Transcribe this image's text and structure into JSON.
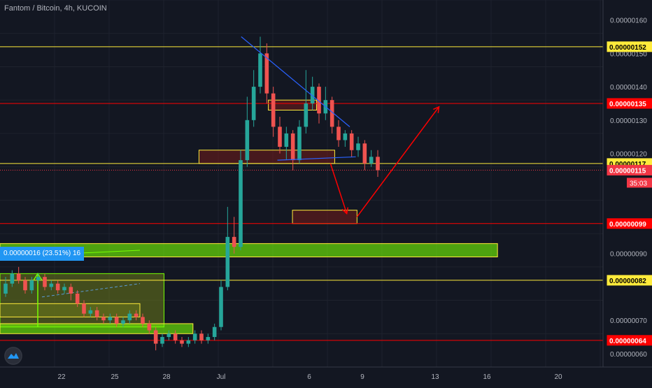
{
  "header": {
    "title": "Fantom / Bitcoin, 4h, KUCOIN"
  },
  "measure_label": "0.00000016 (23.51%) 16",
  "timer": "35:03",
  "colors": {
    "background": "#131722",
    "grid": "#1e222d",
    "up": "#26a69a",
    "down": "#ef5350",
    "yellow": "#ffeb3b",
    "red": "#ff0000",
    "green": "#76ff03",
    "blue": "#2962ff",
    "tick": "#b2b5be",
    "current": "#f23645"
  },
  "chart_data": {
    "type": "candlestick",
    "title": "Fantom / Bitcoin, 4h, KUCOIN",
    "ylim": [
      5.6e-07,
      1.66e-06
    ],
    "y_ticks": [
      "0.00000060",
      "0.00000070",
      "0.00000090",
      "0.00000120",
      "0.00000130",
      "0.00000140",
      "0.00000150",
      "0.00000160"
    ],
    "x_ticks": [
      "22",
      "25",
      "28",
      "Jul",
      "6",
      "9",
      "13",
      "16",
      "20"
    ],
    "price_labels": [
      {
        "text": "0.00000152",
        "value": 1.52e-06,
        "style": "yellow"
      },
      {
        "text": "0.00000135",
        "value": 1.35e-06,
        "style": "red"
      },
      {
        "text": "0.00000117",
        "value": 1.17e-06,
        "style": "yellow"
      },
      {
        "text": "0.00000115",
        "value": 1.15e-06,
        "style": "current"
      },
      {
        "text": "0.00000099",
        "value": 9.9e-07,
        "style": "red"
      },
      {
        "text": "0.00000082",
        "value": 8.2e-07,
        "style": "yellow"
      },
      {
        "text": "0.00000064",
        "value": 6.4e-07,
        "style": "red"
      }
    ],
    "horizontal_lines": [
      {
        "value": 1.52e-06,
        "color": "yellow"
      },
      {
        "value": 1.35e-06,
        "color": "red"
      },
      {
        "value": 1.17e-06,
        "color": "yellow"
      },
      {
        "value": 9.9e-07,
        "color": "red"
      },
      {
        "value": 8.2e-07,
        "color": "yellow"
      },
      {
        "value": 6.4e-07,
        "color": "red"
      }
    ],
    "candles": [
      [
        7.8e-07,
        8.1e-07,
        8.3e-07,
        7.7e-07
      ],
      [
        8.1e-07,
        8.4e-07,
        8.5e-07,
        8e-07
      ],
      [
        8.4e-07,
        8.2e-07,
        8.6e-07,
        8.1e-07
      ],
      [
        8.2e-07,
        7.9e-07,
        8.3e-07,
        7.8e-07
      ],
      [
        7.9e-07,
        8.2e-07,
        8.3e-07,
        7.8e-07
      ],
      [
        8.2e-07,
        8.3e-07,
        8.4e-07,
        8.1e-07
      ],
      [
        8.3e-07,
        8e-07,
        8.4e-07,
        7.9e-07
      ],
      [
        8e-07,
        8.1e-07,
        8.2e-07,
        7.9e-07
      ],
      [
        8.1e-07,
        7.9e-07,
        8.2e-07,
        7.8e-07
      ],
      [
        7.9e-07,
        8e-07,
        8.1e-07,
        7.8e-07
      ],
      [
        8e-07,
        7.8e-07,
        8.1e-07,
        7.6e-07
      ],
      [
        7.8e-07,
        7.5e-07,
        7.9e-07,
        7.4e-07
      ],
      [
        7.5e-07,
        7.2e-07,
        7.6e-07,
        7.1e-07
      ],
      [
        7.2e-07,
        7.3e-07,
        7.4e-07,
        7.1e-07
      ],
      [
        7.3e-07,
        7.1e-07,
        7.4e-07,
        7e-07
      ],
      [
        7.1e-07,
        7e-07,
        7.2e-07,
        6.9e-07
      ],
      [
        7e-07,
        7.1e-07,
        7.2e-07,
        6.9e-07
      ],
      [
        7.1e-07,
        6.9e-07,
        7.2e-07,
        6.8e-07
      ],
      [
        6.9e-07,
        7e-07,
        7.1e-07,
        6.8e-07
      ],
      [
        7e-07,
        7.2e-07,
        7.3e-07,
        6.9e-07
      ],
      [
        7.2e-07,
        7.1e-07,
        7.3e-07,
        7e-07
      ],
      [
        7.1e-07,
        6.9e-07,
        7.2e-07,
        6.8e-07
      ],
      [
        6.9e-07,
        6.7e-07,
        7e-07,
        6.6e-07
      ],
      [
        6.7e-07,
        6.3e-07,
        6.8e-07,
        6.1e-07
      ],
      [
        6.3e-07,
        6.5e-07,
        6.6e-07,
        6.2e-07
      ],
      [
        6.5e-07,
        6.6e-07,
        6.7e-07,
        6.4e-07
      ],
      [
        6.6e-07,
        6.4e-07,
        6.7e-07,
        6.3e-07
      ],
      [
        6.4e-07,
        6.3e-07,
        6.5e-07,
        6.2e-07
      ],
      [
        6.3e-07,
        6.4e-07,
        6.5e-07,
        6.2e-07
      ],
      [
        6.4e-07,
        6.6e-07,
        6.7e-07,
        6.3e-07
      ],
      [
        6.6e-07,
        6.4e-07,
        6.7e-07,
        6.3e-07
      ],
      [
        6.4e-07,
        6.5e-07,
        6.6e-07,
        6.3e-07
      ],
      [
        6.5e-07,
        6.8e-07,
        6.9e-07,
        6.4e-07
      ],
      [
        6.8e-07,
        8e-07,
        8.2e-07,
        6.7e-07
      ],
      [
        8e-07,
        9.5e-07,
        1.04e-06,
        7.9e-07
      ],
      [
        9.5e-07,
        9.2e-07,
        1.01e-06,
        9e-07
      ],
      [
        9.2e-07,
        1.18e-06,
        1.21e-06,
        9.1e-07
      ],
      [
        1.18e-06,
        1.3e-06,
        1.37e-06,
        1.16e-06
      ],
      [
        1.3e-06,
        1.4e-06,
        1.45e-06,
        1.28e-06
      ],
      [
        1.4e-06,
        1.5e-06,
        1.55e-06,
        1.38e-06
      ],
      [
        1.5e-06,
        1.38e-06,
        1.53e-06,
        1.35e-06
      ],
      [
        1.38e-06,
        1.28e-06,
        1.4e-06,
        1.25e-06
      ],
      [
        1.28e-06,
        1.22e-06,
        1.31e-06,
        1.2e-06
      ],
      [
        1.22e-06,
        1.26e-06,
        1.28e-06,
        1.18e-06
      ],
      [
        1.26e-06,
        1.18e-06,
        1.27e-06,
        1.15e-06
      ],
      [
        1.18e-06,
        1.28e-06,
        1.3e-06,
        1.17e-06
      ],
      [
        1.28e-06,
        1.35e-06,
        1.45e-06,
        1.26e-06
      ],
      [
        1.35e-06,
        1.4e-06,
        1.43e-06,
        1.33e-06
      ],
      [
        1.4e-06,
        1.32e-06,
        1.41e-06,
        1.29e-06
      ],
      [
        1.32e-06,
        1.36e-06,
        1.4e-06,
        1.3e-06
      ],
      [
        1.36e-06,
        1.28e-06,
        1.37e-06,
        1.26e-06
      ],
      [
        1.28e-06,
        1.24e-06,
        1.3e-06,
        1.22e-06
      ],
      [
        1.24e-06,
        1.26e-06,
        1.27e-06,
        1.22e-06
      ],
      [
        1.26e-06,
        1.21e-06,
        1.27e-06,
        1.19e-06
      ],
      [
        1.21e-06,
        1.23e-06,
        1.25e-06,
        1.19e-06
      ],
      [
        1.23e-06,
        1.17e-06,
        1.24e-06,
        1.15e-06
      ],
      [
        1.17e-06,
        1.19e-06,
        1.21e-06,
        1.16e-06
      ],
      [
        1.19e-06,
        1.15e-06,
        1.21e-06,
        1.13e-06
      ]
    ],
    "zones": [
      {
        "x1": 0.33,
        "x2": 0.555,
        "y1": 1.21e-06,
        "y2": 1.17e-06,
        "fill": "darkred",
        "stroke": "yellow"
      },
      {
        "x1": 0.445,
        "x2": 0.525,
        "y1": 1.36e-06,
        "y2": 1.33e-06,
        "fill": "darkred",
        "stroke": "yellow"
      },
      {
        "x1": 0.485,
        "x2": 0.592,
        "y1": 1.03e-06,
        "y2": 9.9e-07,
        "fill": "darkred",
        "stroke": "yellow"
      },
      {
        "x1": 0.0,
        "x2": 0.825,
        "y1": 9.3e-07,
        "y2": 8.9e-07,
        "fill": "green",
        "stroke": "yellow"
      },
      {
        "x1": 0.0,
        "x2": 0.272,
        "y1": 8.4e-07,
        "y2": 6.8e-07,
        "fill": "olive",
        "stroke": "green"
      },
      {
        "x1": 0.0,
        "x2": 0.232,
        "y1": 7.5e-07,
        "y2": 7.1e-07,
        "fill": "olive",
        "stroke": "yellow"
      },
      {
        "x1": 0.0,
        "x2": 0.32,
        "y1": 6.9e-07,
        "y2": 6.6e-07,
        "fill": "green",
        "stroke": "yellow"
      }
    ],
    "trendlines": [
      {
        "x1": 0.4,
        "y1": 1.55e-06,
        "x2": 0.58,
        "y2": 1.28e-06,
        "color": "blue"
      },
      {
        "x1": 0.46,
        "y1": 1.18e-06,
        "x2": 0.59,
        "y2": 1.19e-06,
        "color": "blue"
      }
    ],
    "arrows": [
      {
        "x1": 0.548,
        "y1": 1.17e-06,
        "x2": 0.575,
        "y2": 1.02e-06,
        "color": "red"
      },
      {
        "x1": 0.592,
        "y1": 1.01e-06,
        "x2": 0.728,
        "y2": 1.34e-06,
        "color": "red"
      }
    ]
  }
}
